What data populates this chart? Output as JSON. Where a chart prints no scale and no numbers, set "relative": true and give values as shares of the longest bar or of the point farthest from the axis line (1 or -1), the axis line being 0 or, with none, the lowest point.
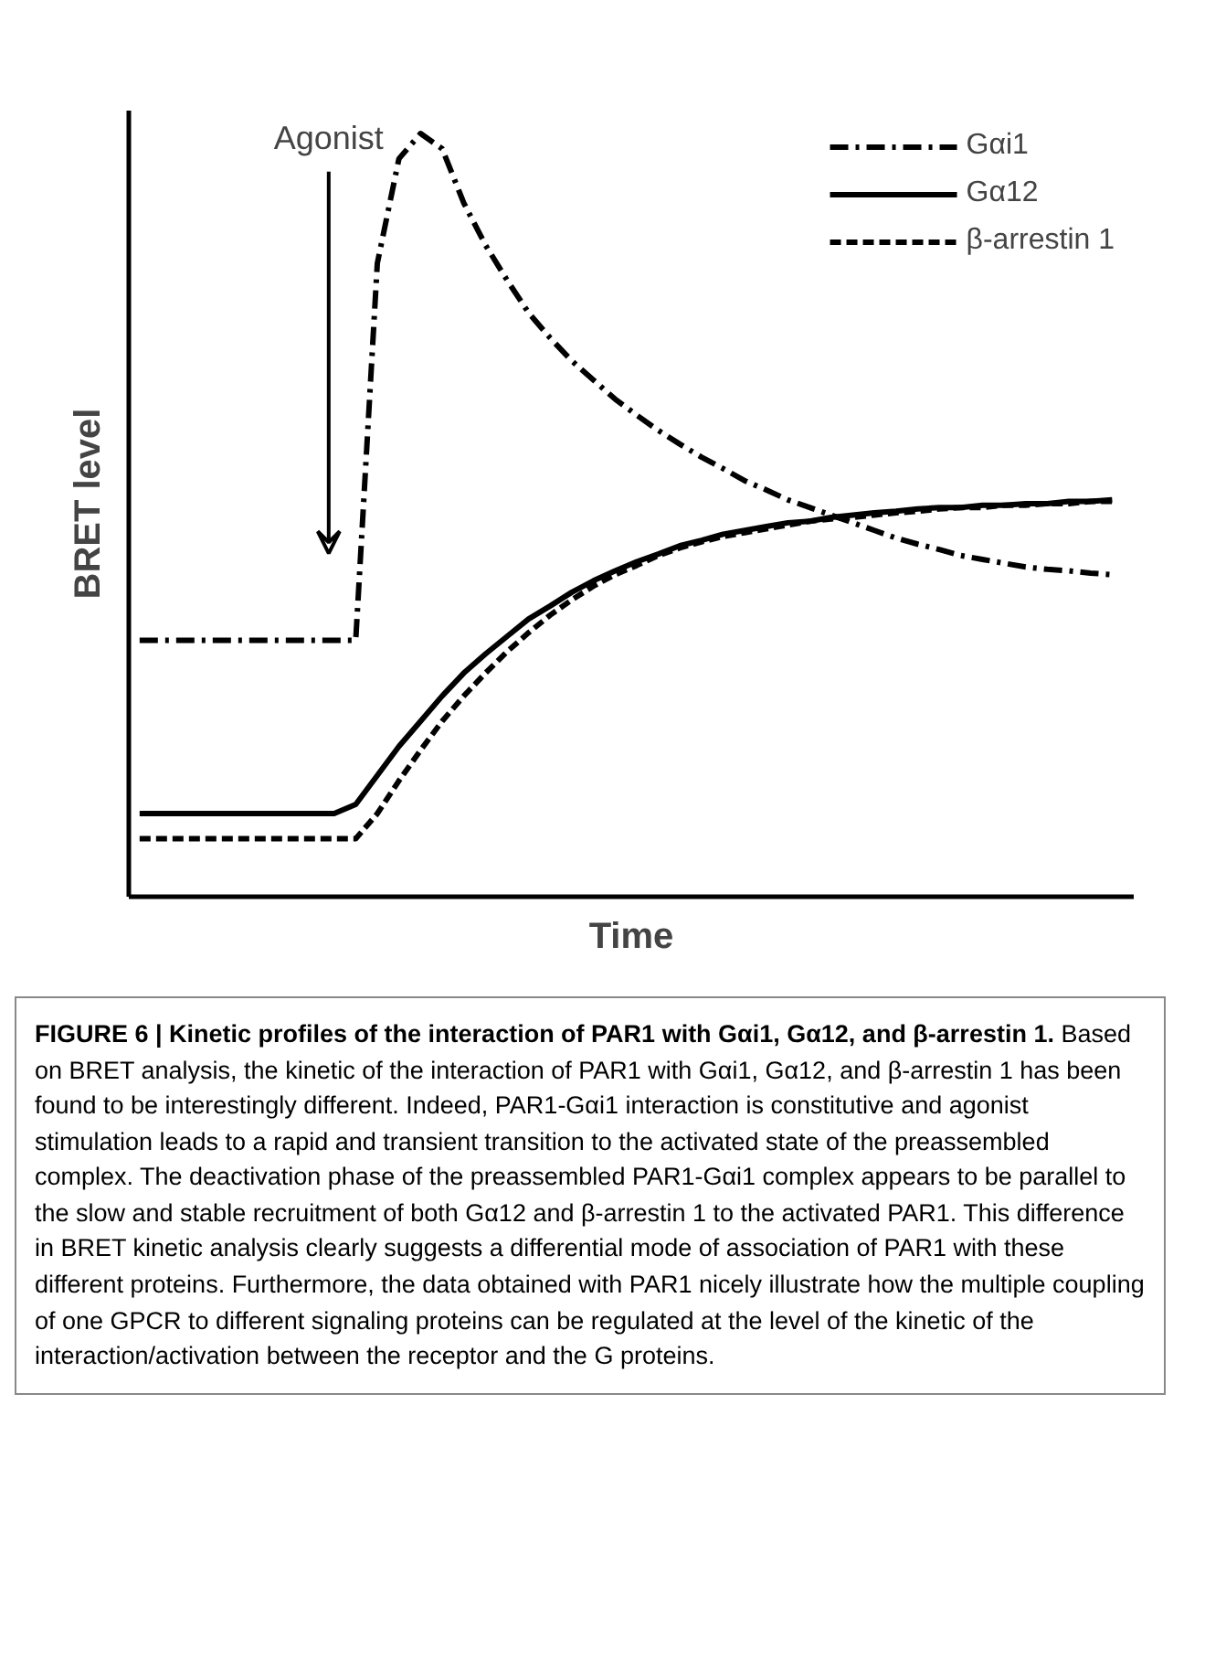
{
  "chart_data": {
    "type": "line",
    "relative": true,
    "xlabel": "Time",
    "ylabel": "BRET level",
    "legend": "top right",
    "categories": [
      null,
      null,
      null,
      null,
      null,
      null,
      null,
      null,
      null,
      null,
      null,
      null,
      null,
      null,
      null,
      null,
      null,
      null,
      null,
      null,
      null,
      null,
      null,
      null,
      null,
      null,
      null,
      null,
      null,
      null,
      null,
      null,
      null,
      null,
      null,
      null,
      null,
      null,
      null,
      null,
      null,
      null,
      null,
      null,
      null,
      null
    ],
    "series": [
      {
        "name": "Gαi1",
        "color": "#000000",
        "line_style": "dashdot",
        "values": [
          0.336,
          0.336,
          0.336,
          0.336,
          0.336,
          0.336,
          0.336,
          0.336,
          0.336,
          0.336,
          0.336,
          0.83,
          0.967,
          1.0,
          0.98,
          0.909,
          0.854,
          0.808,
          0.765,
          0.732,
          0.702,
          0.677,
          0.652,
          0.631,
          0.611,
          0.593,
          0.576,
          0.561,
          0.545,
          0.533,
          0.52,
          0.51,
          0.5,
          0.49,
          0.48,
          0.47,
          0.462,
          0.455,
          0.447,
          0.442,
          0.437,
          0.432,
          0.429,
          0.427,
          0.424,
          0.422
        ]
      },
      {
        "name": "Gα12",
        "color": "#000000",
        "line_style": "solid",
        "values": [
          0.109,
          0.109,
          0.109,
          0.109,
          0.109,
          0.109,
          0.109,
          0.109,
          0.109,
          0.109,
          0.121,
          0.159,
          0.197,
          0.23,
          0.263,
          0.293,
          0.318,
          0.341,
          0.364,
          0.381,
          0.399,
          0.414,
          0.427,
          0.439,
          0.449,
          0.46,
          0.467,
          0.475,
          0.48,
          0.485,
          0.49,
          0.492,
          0.497,
          0.5,
          0.503,
          0.505,
          0.508,
          0.51,
          0.51,
          0.513,
          0.513,
          0.515,
          0.515,
          0.518,
          0.518,
          0.52
        ]
      },
      {
        "name": "β-arrestin 1",
        "color": "#000000",
        "line_style": "dashed",
        "values": [
          0.076,
          0.076,
          0.076,
          0.076,
          0.076,
          0.076,
          0.076,
          0.076,
          0.076,
          0.076,
          0.076,
          0.109,
          0.152,
          0.192,
          0.23,
          0.263,
          0.293,
          0.321,
          0.346,
          0.369,
          0.389,
          0.407,
          0.422,
          0.434,
          0.447,
          0.457,
          0.465,
          0.472,
          0.477,
          0.482,
          0.487,
          0.492,
          0.495,
          0.497,
          0.5,
          0.503,
          0.505,
          0.508,
          0.51,
          0.51,
          0.513,
          0.513,
          0.515,
          0.515,
          0.518,
          0.518
        ]
      }
    ],
    "annotations": [
      "Agonist",
      "FIGURE 6 | Kinetic profiles of the interaction of PAR1 with Gαi1, Gα12, and β-arrestin 1.",
      "Based on BRET analysis, the kinetic of the interaction of PAR1 with Gαi1, Gα12, and β-arrestin 1 has been found to be interestingly different. Indeed, PAR1-Gαi1 interaction is constitutive and agonist stimulation leads to a rapid and transient transition to the activated state of the preassembled complex. The deactivation phase of the preassembled PAR1-Gαi1 complex appears to be parallel to the slow and stable recruitment of both Gα12 and β-arrestin 1 to the activated PAR1. This difference in BRET kinetic analysis clearly suggests a differential mode of association of PAR1 with these different proteins. Furthermore, the data obtained with PAR1 nicely illustrate how the multiple coupling of one GPCR to different signaling proteins can be regulated at the level of the kinetic of the interaction/activation between the receptor and the G proteins."
    ]
  }
}
